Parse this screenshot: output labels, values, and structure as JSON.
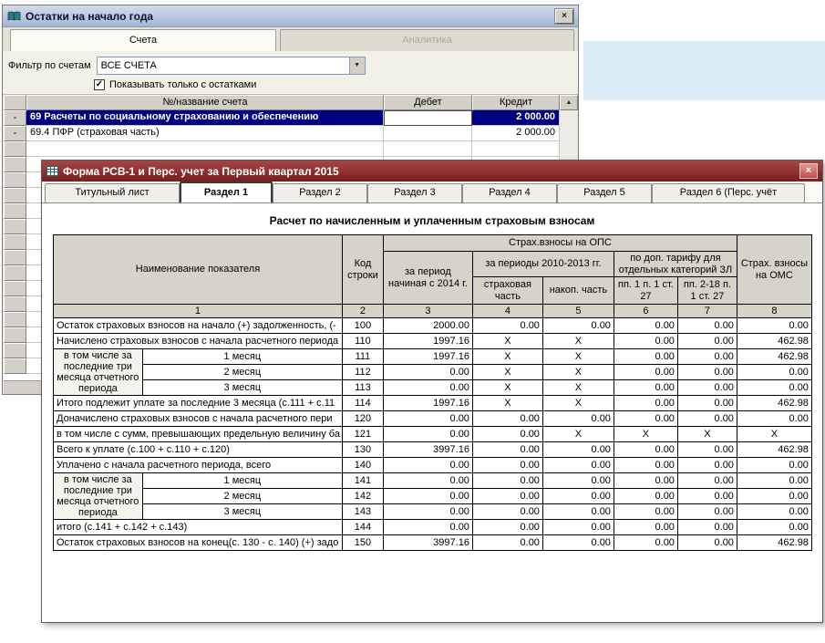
{
  "balances_window": {
    "title": "Остатки на начало года",
    "close_label": "×",
    "tabs": [
      {
        "label": "Счета"
      },
      {
        "label": "Аналитика"
      }
    ],
    "filter_label": "Фильтр по счетам",
    "filter_value": "ВСЕ СЧЕТА",
    "combo_arrow": "▼",
    "checkbox_glyph": "✓",
    "checkbox_label": "Показывать только с остатками",
    "scroll_up_glyph": "▲",
    "columns": {
      "name": "№/название счета",
      "debit": "Дебет",
      "credit": "Кредит"
    },
    "rows": [
      {
        "expander": "-",
        "name": "69 Расчеты по социальному страхованию и обеспечению",
        "debit": "",
        "credit": "2 000.00"
      },
      {
        "expander": "-",
        "name": "69.4  ПФР (страховая часть)",
        "debit": "",
        "credit": "2 000.00"
      }
    ],
    "empty_row_count": 15
  },
  "rsv_window": {
    "title": "Форма РСВ-1 и Перс. учет за Первый квартал 2015",
    "close_label": "×",
    "tabs": [
      {
        "label": "Титульный лист"
      },
      {
        "label": "Раздел 1"
      },
      {
        "label": "Раздел 2"
      },
      {
        "label": "Раздел 3"
      },
      {
        "label": "Раздел 4"
      },
      {
        "label": "Раздел 5"
      },
      {
        "label": "Раздел 6 (Перс. учёт"
      }
    ],
    "section_title": "Расчет по начисленным и уплаченным страховым взносам",
    "table": {
      "header": {
        "name": "Наименование показателя",
        "code": "Код строки",
        "ops": "Страх.взносы на ОПС",
        "oms": "Страх. взносы на ОМС",
        "period_2014": "за период начиная с 2014 г.",
        "period_2010_2013": "за периоды 2010-2013 гг.",
        "extra_tariff": "по доп. тарифу для отдельных категорий ЗЛ",
        "insurance_part": "страховая часть",
        "funded_part": "накоп. часть",
        "pp1": "пп. 1 п. 1 ст. 27",
        "pp2_18": "пп. 2-18 п. 1 ст. 27",
        "numbers": [
          "1",
          "2",
          "3",
          "4",
          "5",
          "6",
          "7",
          "8"
        ]
      },
      "rows": [
        {
          "kind": "plain",
          "name": "Остаток страховых взносов на начало (+) задолженность, (-",
          "code": "100",
          "values": [
            "2000.00",
            "0.00",
            "0.00",
            "0.00",
            "0.00",
            "0.00"
          ]
        },
        {
          "kind": "plain",
          "name": "Начислено страховых взносов с начала расчетного периода",
          "code": "110",
          "values": [
            "1997.16",
            "X",
            "X",
            "0.00",
            "0.00",
            "462.98"
          ]
        },
        {
          "kind": "group",
          "group_label": "в том числе за последние три месяца отчетного периода",
          "span": 3,
          "sub": "1 месяц",
          "code": "111",
          "values": [
            "1997.16",
            "X",
            "X",
            "0.00",
            "0.00",
            "462.98"
          ]
        },
        {
          "kind": "sub",
          "sub": "2 месяц",
          "code": "112",
          "values": [
            "0.00",
            "X",
            "X",
            "0.00",
            "0.00",
            "0.00"
          ]
        },
        {
          "kind": "sub",
          "sub": "3 месяц",
          "code": "113",
          "values": [
            "0.00",
            "X",
            "X",
            "0.00",
            "0.00",
            "0.00"
          ]
        },
        {
          "kind": "plain",
          "name": "Итого подлежит уплате за последние 3 месяца (с.111 + с.11",
          "code": "114",
          "values": [
            "1997.16",
            "X",
            "X",
            "0.00",
            "0.00",
            "462.98"
          ]
        },
        {
          "kind": "plain",
          "name": "Доначислено страховых взносов с начала расчетного пери",
          "code": "120",
          "values": [
            "0.00",
            "0.00",
            "0.00",
            "0.00",
            "0.00",
            "0.00"
          ]
        },
        {
          "kind": "plain",
          "name": "в том числе с сумм, превышающих предельную величину ба",
          "code": "121",
          "values": [
            "0.00",
            "0.00",
            "X",
            "X",
            "X",
            "X"
          ]
        },
        {
          "kind": "plain",
          "name": "Всего к уплате (с.100 + с.110 + с.120)",
          "code": "130",
          "values": [
            "3997.16",
            "0.00",
            "0.00",
            "0.00",
            "0.00",
            "462.98"
          ]
        },
        {
          "kind": "plain",
          "name": "Уплачено с начала расчетного периода, всего",
          "code": "140",
          "values": [
            "0.00",
            "0.00",
            "0.00",
            "0.00",
            "0.00",
            "0.00"
          ]
        },
        {
          "kind": "group",
          "group_label": "в том числе за последние три месяца отчетного периода",
          "span": 3,
          "sub": "1 месяц",
          "code": "141",
          "values": [
            "0.00",
            "0.00",
            "0.00",
            "0.00",
            "0.00",
            "0.00"
          ]
        },
        {
          "kind": "sub",
          "sub": "2 месяц",
          "code": "142",
          "values": [
            "0.00",
            "0.00",
            "0.00",
            "0.00",
            "0.00",
            "0.00"
          ]
        },
        {
          "kind": "sub",
          "sub": "3 месяц",
          "code": "143",
          "values": [
            "0.00",
            "0.00",
            "0.00",
            "0.00",
            "0.00",
            "0.00"
          ]
        },
        {
          "kind": "plain",
          "name": "итого (с.141 + с.142 + с.143)",
          "code": "144",
          "values": [
            "0.00",
            "0.00",
            "0.00",
            "0.00",
            "0.00",
            "0.00"
          ]
        },
        {
          "kind": "plain",
          "name": "Остаток страховых взносов на конец(с. 130 - с. 140) (+) задо",
          "code": "150",
          "values": [
            "3997.16",
            "0.00",
            "0.00",
            "0.00",
            "0.00",
            "462.98"
          ]
        }
      ]
    }
  }
}
